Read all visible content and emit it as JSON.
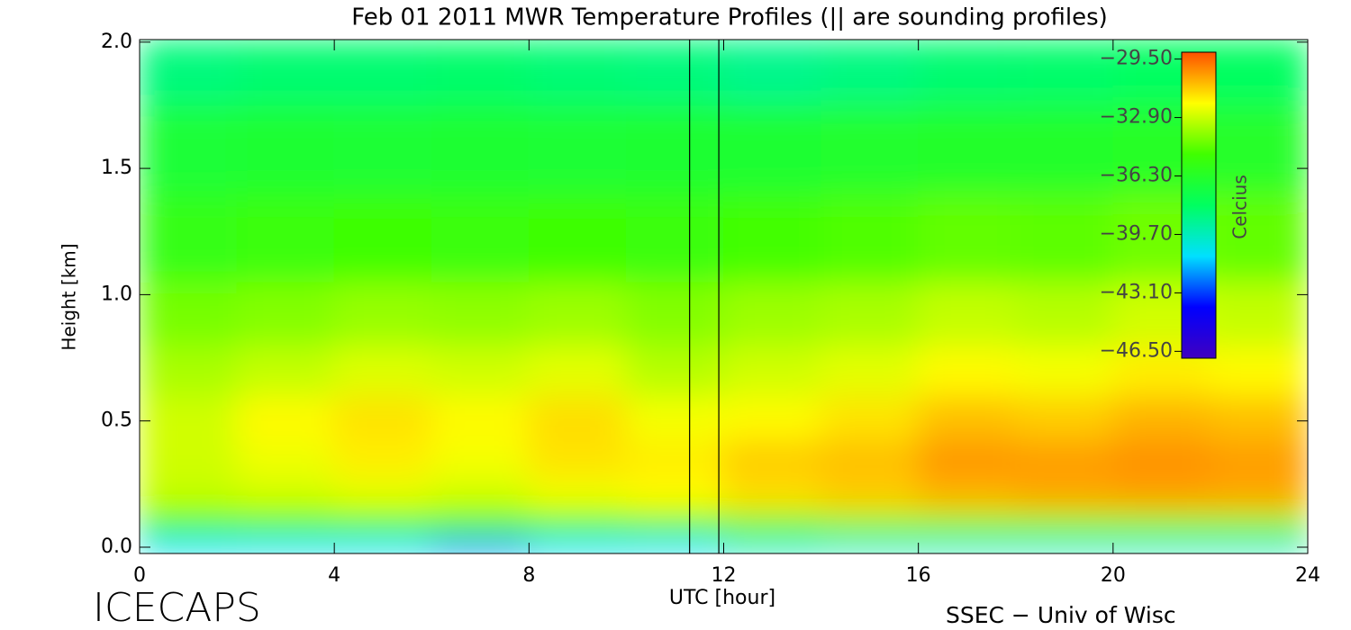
{
  "chart_data": {
    "type": "heatmap",
    "title": "Feb 01 2011 MWR Temperature Profiles (|| are sounding profiles)",
    "x_label": "UTC [hour]",
    "y_label": "Height [km]",
    "colorbar_label": "Celcius",
    "footer_left": "ICECAPS",
    "footer_right": "SSEC − Univ of Wisc",
    "xlim": [
      0,
      24
    ],
    "xticks": [
      0,
      4,
      8,
      12,
      16,
      20,
      24
    ],
    "ylim": [
      -0.025,
      2.01
    ],
    "yticks": [
      {
        "value": 0,
        "label": "0.0"
      },
      0.5,
      {
        "value": 1,
        "label": "1.0"
      },
      1.5,
      {
        "value": 2,
        "label": "2.0"
      }
    ],
    "x": [
      1,
      3,
      5,
      7,
      9,
      11,
      13,
      15,
      17,
      19,
      21,
      23
    ],
    "y": [
      0.01,
      0.08,
      0.2,
      0.35,
      0.5,
      0.7,
      0.9,
      1.2,
      1.6,
      1.9
    ],
    "z": [
      [
        -41,
        -41,
        -41,
        -42,
        -41,
        -41,
        -40,
        -40,
        -40,
        -40,
        -40,
        -40
      ],
      [
        -36,
        -35.5,
        -35.5,
        -36,
        -35.5,
        -35,
        -34.5,
        -34,
        -34,
        -34,
        -34,
        -34
      ],
      [
        -33,
        -32.8,
        -32.5,
        -32.8,
        -32.3,
        -32,
        -31.5,
        -31.2,
        -30.8,
        -30.6,
        -30.5,
        -30.6
      ],
      [
        -32.8,
        -32.3,
        -31.8,
        -32.2,
        -31.6,
        -31.8,
        -31.2,
        -31,
        -30.3,
        -30.4,
        -30.2,
        -30.4
      ],
      [
        -32.8,
        -32,
        -31.6,
        -32,
        -31.5,
        -32.2,
        -32,
        -31.6,
        -31,
        -31.2,
        -30.8,
        -31
      ],
      [
        -33.4,
        -33,
        -32.6,
        -32.8,
        -32.5,
        -33.2,
        -32.8,
        -32.5,
        -32,
        -32.2,
        -31.8,
        -32
      ],
      [
        -34.2,
        -34,
        -33.7,
        -33.8,
        -33.6,
        -34,
        -33.6,
        -33.4,
        -33,
        -33.2,
        -32.8,
        -33
      ],
      [
        -35.6,
        -35.3,
        -35.2,
        -35.3,
        -35.2,
        -35.3,
        -35,
        -34.8,
        -34.5,
        -34.6,
        -34.3,
        -34.5
      ],
      [
        -36.8,
        -36.6,
        -36.7,
        -36.6,
        -36.7,
        -36.6,
        -36.6,
        -36.5,
        -36.4,
        -36.4,
        -36.2,
        -36.3
      ],
      [
        -38.5,
        -38.3,
        -38.3,
        -38.2,
        -38.4,
        -38.5,
        -38.8,
        -38.6,
        -38.3,
        -38.2,
        -38,
        -38
      ]
    ],
    "soundings": [
      11.3,
      11.9
    ],
    "clim": [
      -46.9,
      -29.1
    ],
    "colormap": [
      "#4000c0",
      "#0000ff",
      "#00e0ff",
      "#00ff60",
      "#40ff00",
      "#ffff00",
      "#ff5000"
    ],
    "cticks": [
      {
        "value": -29.5,
        "label": "−29.50"
      },
      {
        "value": -32.9,
        "label": "−32.90"
      },
      {
        "value": -36.3,
        "label": "−36.30"
      },
      {
        "value": -39.7,
        "label": "−39.70"
      },
      {
        "value": -43.1,
        "label": "−43.10"
      },
      {
        "value": -46.5,
        "label": "−46.50"
      }
    ]
  }
}
